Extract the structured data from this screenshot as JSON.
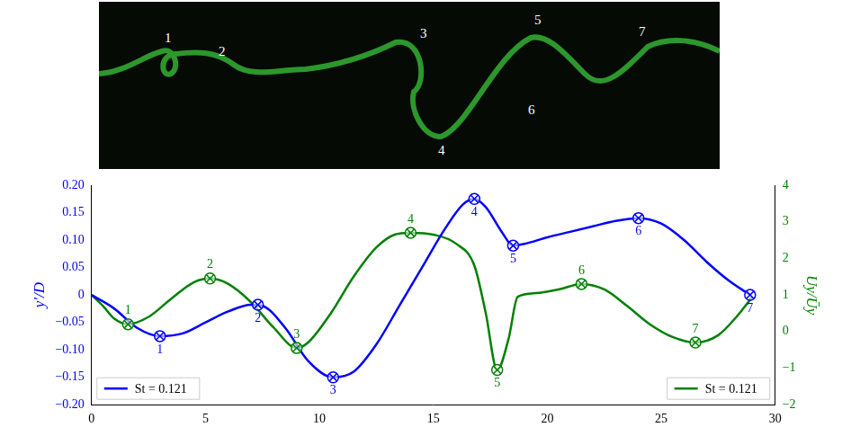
{
  "image_labels": [
    "1",
    "2",
    "3",
    "4",
    "5",
    "6",
    "7"
  ],
  "chart_data": {
    "type": "line",
    "xlim": [
      0,
      30
    ],
    "xticks": [
      0,
      5,
      10,
      15,
      20,
      25,
      30
    ],
    "ylabel": "y′/D",
    "ylim": [
      -0.2,
      0.2
    ],
    "yticks": [
      {
        "value": -0.2,
        "label": "−0.20"
      },
      {
        "value": -0.15,
        "label": "−0.15"
      },
      {
        "value": -0.1,
        "label": "−0.10"
      },
      {
        "value": -0.05,
        "label": "−0.05"
      },
      0,
      0.05,
      {
        "value": 0.1,
        "label": "0.10"
      },
      0.15,
      {
        "value": 0.2,
        "label": "0.20"
      }
    ],
    "y2label": "Uy/Ūy",
    "y2lim": [
      -2,
      4
    ],
    "y2ticks": [
      {
        "value": -2,
        "label": "−2"
      },
      {
        "value": -1,
        "label": "−1"
      },
      0,
      1,
      2,
      3,
      4
    ],
    "grid": false,
    "legend": "bottom",
    "series": [
      {
        "name": "St = 0.121",
        "color": "#0000ff",
        "axis": "y",
        "marker": "crossed_circle",
        "x": [
          0,
          1,
          2,
          3,
          4,
          5,
          6,
          7,
          7.5,
          8.5,
          9.5,
          10.6,
          11.5,
          12.5,
          13.5,
          14.5,
          15.5,
          16.3,
          16.8,
          17.3,
          18,
          18.5,
          19,
          20,
          21,
          22,
          23,
          24,
          25,
          26,
          27,
          28,
          28.9
        ],
        "values": [
          0,
          -0.025,
          -0.06,
          -0.075,
          -0.07,
          -0.05,
          -0.03,
          -0.018,
          -0.02,
          -0.06,
          -0.12,
          -0.15,
          -0.14,
          -0.09,
          -0.02,
          0.05,
          0.12,
          0.165,
          0.175,
          0.16,
          0.115,
          0.09,
          0.093,
          0.105,
          0.115,
          0.125,
          0.135,
          0.14,
          0.13,
          0.1,
          0.06,
          0.025,
          0
        ],
        "marked_points": [
          {
            "x": 3,
            "y": -0.075,
            "label": "1"
          },
          {
            "x": 7.3,
            "y": -0.018,
            "label": "2"
          },
          {
            "x": 10.6,
            "y": -0.15,
            "label": "3"
          },
          {
            "x": 16.8,
            "y": 0.175,
            "label": "4"
          },
          {
            "x": 18.5,
            "y": 0.09,
            "label": "5"
          },
          {
            "x": 24,
            "y": 0.14,
            "label": "6"
          },
          {
            "x": 28.9,
            "y": 0,
            "label": "7"
          }
        ]
      },
      {
        "name": "St = 0.121",
        "color": "#008000",
        "axis": "y2",
        "marker": "crossed_circle",
        "x": [
          0,
          0.5,
          1,
          1.6,
          2.5,
          3.5,
          4.5,
          5.2,
          6,
          7,
          8,
          9,
          9.5,
          10.5,
          11.5,
          12.5,
          13.3,
          14,
          15,
          16,
          16.8,
          17.3,
          17.8,
          18.3,
          18.7,
          19.5,
          20.5,
          21.5,
          22.5,
          23.5,
          24.5,
          25.5,
          26.5,
          27.5,
          28.3,
          29
        ],
        "values": [
          1,
          0.7,
          0.35,
          0.2,
          0.4,
          0.9,
          1.35,
          1.45,
          1.3,
          0.8,
          0.1,
          -0.45,
          -0.3,
          0.5,
          1.5,
          2.3,
          2.65,
          2.7,
          2.65,
          2.4,
          1.8,
          0.5,
          -1.05,
          -0.2,
          0.95,
          1.05,
          1.15,
          1.3,
          1.15,
          0.7,
          0.2,
          -0.15,
          -0.3,
          -0.1,
          0.4,
          0.95
        ],
        "marked_points": [
          {
            "x": 1.6,
            "y": 0.2,
            "label": "1"
          },
          {
            "x": 5.2,
            "y": 1.45,
            "label": "2"
          },
          {
            "x": 9,
            "y": -0.45,
            "label": "3"
          },
          {
            "x": 14,
            "y": 2.7,
            "label": "4"
          },
          {
            "x": 17.8,
            "y": -1.05,
            "label": "5"
          },
          {
            "x": 21.5,
            "y": 1.3,
            "label": "6"
          },
          {
            "x": 26.5,
            "y": -0.3,
            "label": "7"
          }
        ]
      }
    ]
  }
}
